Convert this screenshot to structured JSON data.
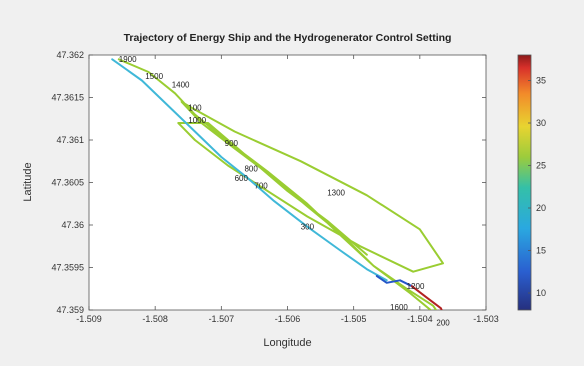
{
  "chart_data": {
    "type": "line",
    "title": "Trajectory of Energy Ship and the Hydrogenerator Control Setting",
    "xlabel": "Longitude",
    "ylabel": "Latitude",
    "xlim": [
      -1.509,
      -1.503
    ],
    "ylim": [
      47.359,
      47.362
    ],
    "xticks": [
      "-1.509",
      "-1.508",
      "-1.507",
      "-1.506",
      "-1.505",
      "-1.504",
      "-1.503"
    ],
    "yticks": [
      "47.359",
      "47.3595",
      "47.36",
      "47.3605",
      "47.361",
      "47.3615",
      "47.362"
    ],
    "colorbar": {
      "min": 8,
      "max": 38,
      "ticks": [
        "10",
        "15",
        "20",
        "25",
        "30",
        "35"
      ]
    },
    "grid": false,
    "series": [
      {
        "color_value": 24,
        "color": "#9acd32",
        "points": [
          [
            -1.50855,
            47.36195
          ],
          [
            -1.5081,
            47.3618
          ],
          [
            -1.5077,
            47.36155
          ],
          [
            -1.5074,
            47.3613
          ],
          [
            -1.5069,
            47.36098
          ],
          [
            -1.5063,
            47.36063
          ],
          [
            -1.5057,
            47.36025
          ],
          [
            -1.5052,
            47.35988
          ],
          [
            -1.5047,
            47.35952
          ],
          [
            -1.50415,
            47.3592
          ],
          [
            -1.50365,
            47.35888
          ],
          [
            -1.5038,
            47.35905
          ],
          [
            -1.5042,
            47.35925
          ],
          [
            -1.5047,
            47.35952
          ],
          [
            -1.5052,
            47.3599
          ],
          [
            -1.5057,
            47.36022
          ],
          [
            -1.5062,
            47.36055
          ],
          [
            -1.5068,
            47.3609
          ],
          [
            -1.5073,
            47.3612
          ],
          [
            -1.5076,
            47.36145
          ],
          [
            -1.50745,
            47.36138
          ],
          [
            -1.5068,
            47.3611
          ],
          [
            -1.5058,
            47.36075
          ],
          [
            -1.5048,
            47.36035
          ],
          [
            -1.504,
            47.35995
          ],
          [
            -1.50365,
            47.35955
          ],
          [
            -1.5041,
            47.35945
          ],
          [
            -1.5049,
            47.35975
          ],
          [
            -1.5057,
            47.3601
          ],
          [
            -1.5064,
            47.36045
          ],
          [
            -1.5069,
            47.3607
          ],
          [
            -1.5074,
            47.361
          ],
          [
            -1.50765,
            47.3612
          ],
          [
            -1.5072,
            47.3612
          ],
          [
            -1.5066,
            47.3608
          ],
          [
            -1.506,
            47.3604
          ],
          [
            -1.5054,
            47.36005
          ],
          [
            -1.5048,
            47.35965
          ]
        ]
      },
      {
        "color_value": 19,
        "color": "#40b8d8",
        "points": [
          [
            -1.50865,
            47.36195
          ],
          [
            -1.5082,
            47.3617
          ],
          [
            -1.5078,
            47.3614
          ],
          [
            -1.5074,
            47.3611
          ],
          [
            -1.507,
            47.3608
          ],
          [
            -1.5066,
            47.36055
          ],
          [
            -1.5062,
            47.36028
          ],
          [
            -1.5057,
            47.35998
          ],
          [
            -1.5052,
            47.3597
          ],
          [
            -1.5048,
            47.35948
          ],
          [
            -1.5045,
            47.35935
          ]
        ]
      },
      {
        "color_value": 14,
        "color": "#2457c8",
        "points": [
          [
            -1.50465,
            47.3594
          ],
          [
            -1.5045,
            47.35932
          ],
          [
            -1.5043,
            47.35935
          ],
          [
            -1.50412,
            47.35928
          ]
        ]
      },
      {
        "color_value": 36,
        "color": "#b22222",
        "points": [
          [
            -1.50412,
            47.35928
          ],
          [
            -1.5039,
            47.35915
          ],
          [
            -1.50368,
            47.35902
          ],
          [
            -1.5036,
            47.35885
          ]
        ]
      }
    ],
    "endpoint": {
      "x": -1.5036,
      "y": 47.35885,
      "color": "#e63c3c"
    },
    "annotations": [
      {
        "text": "1900",
        "x": -1.50855,
        "y": 47.36192
      },
      {
        "text": "1500",
        "x": -1.50815,
        "y": 47.36172
      },
      {
        "text": "1400",
        "x": -1.50775,
        "y": 47.36162
      },
      {
        "text": "100",
        "x": -1.5075,
        "y": 47.36135
      },
      {
        "text": "1000",
        "x": -1.5075,
        "y": 47.3612
      },
      {
        "text": "900",
        "x": -1.50695,
        "y": 47.36093
      },
      {
        "text": "800",
        "x": -1.50665,
        "y": 47.36063
      },
      {
        "text": "600",
        "x": -1.5068,
        "y": 47.36052
      },
      {
        "text": "700",
        "x": -1.5065,
        "y": 47.36043
      },
      {
        "text": "1300",
        "x": -1.5054,
        "y": 47.36035
      },
      {
        "text": "300",
        "x": -1.5058,
        "y": 47.35995
      },
      {
        "text": "1200",
        "x": -1.5042,
        "y": 47.35925
      },
      {
        "text": "1600",
        "x": -1.50445,
        "y": 47.359
      },
      {
        "text": "200",
        "x": -1.50375,
        "y": 47.35882
      }
    ]
  }
}
